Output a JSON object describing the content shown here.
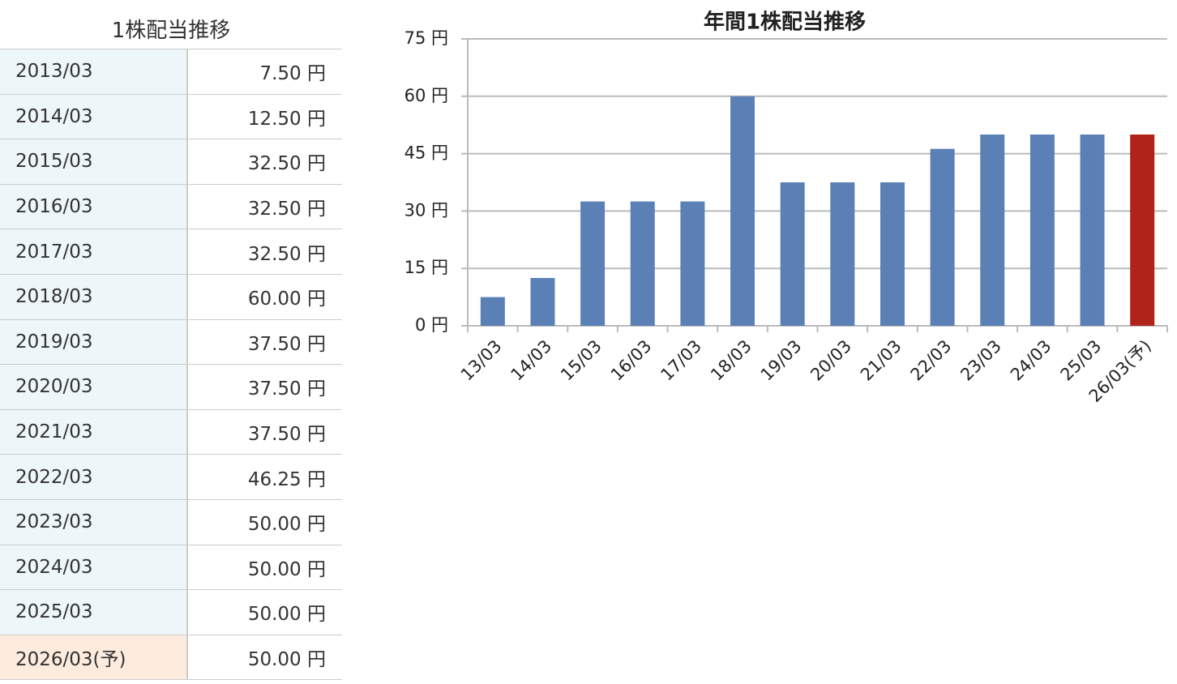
{
  "table": {
    "title": "1株配当推移",
    "rows": [
      [
        "2013/03",
        "7.50 円"
      ],
      [
        "2014/03",
        "12.50 円"
      ],
      [
        "2015/03",
        "32.50 円"
      ],
      [
        "2016/03",
        "32.50 円"
      ],
      [
        "2017/03",
        "32.50 円"
      ],
      [
        "2018/03",
        "60.00 円"
      ],
      [
        "2019/03",
        "37.50 円"
      ],
      [
        "2020/03",
        "37.50 円"
      ],
      [
        "2021/03",
        "37.50 円"
      ],
      [
        "2022/03",
        "46.25 円"
      ],
      [
        "2023/03",
        "50.00 円"
      ],
      [
        "2024/03",
        "50.00 円"
      ],
      [
        "2025/03",
        "50.00 円"
      ],
      [
        "2026/03(予)",
        "50.00 円"
      ]
    ]
  },
  "chart_data": {
    "type": "bar",
    "title": "年間1株配当推移",
    "categories": [
      "13/03",
      "14/03",
      "15/03",
      "16/03",
      "17/03",
      "18/03",
      "19/03",
      "20/03",
      "21/03",
      "22/03",
      "23/03",
      "24/03",
      "25/03",
      "26/03(予)"
    ],
    "values": [
      7.5,
      12.5,
      32.5,
      32.5,
      32.5,
      60,
      37.5,
      37.5,
      37.5,
      46.25,
      50,
      50,
      50,
      50
    ],
    "colors": [
      "#5a80b6",
      "#5a80b6",
      "#5a80b6",
      "#5a80b6",
      "#5a80b6",
      "#5a80b6",
      "#5a80b6",
      "#5a80b6",
      "#5a80b6",
      "#5a80b6",
      "#5a80b6",
      "#5a80b6",
      "#5a80b6",
      "#b0231a"
    ],
    "ylim": [
      0,
      75
    ],
    "yticks": [
      {
        "value": 0,
        "label": "0 円"
      },
      {
        "value": 15,
        "label": "15 円"
      },
      {
        "value": 30,
        "label": "30 円"
      },
      {
        "value": 45,
        "label": "45 円"
      },
      {
        "value": 60,
        "label": "60 円"
      },
      {
        "value": 75,
        "label": "75 円"
      }
    ],
    "grid": true
  }
}
